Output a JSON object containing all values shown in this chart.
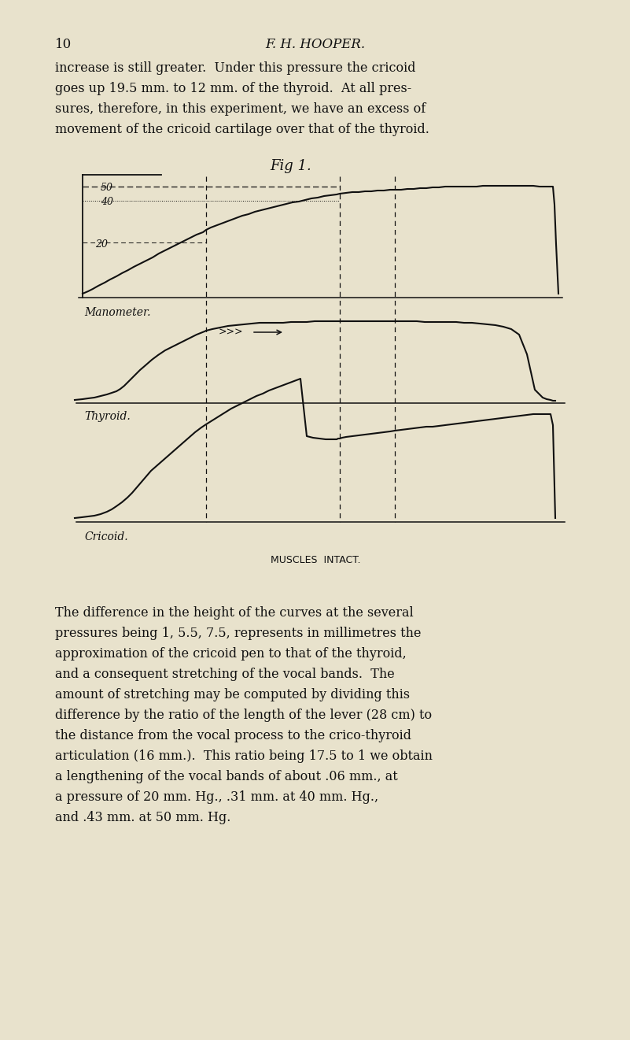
{
  "bg_color": "#e8e2cc",
  "page_number": "10",
  "header_title": "F. H. HOOPER.",
  "top_lines": [
    "increase is still greater.  Under this pressure the cricoid",
    "goes up 19.5 mm. to 12 mm. of the thyroid.  At all pres-",
    "sures, therefore, in this experiment, we have an excess of",
    "movement of the cricoid cartilage over that of the thyroid."
  ],
  "fig_title": "Fig 1.",
  "caption": "MUSCLES  INTACT.",
  "bottom_lines": [
    "The difference in the height of the curves at the several",
    "pressures being 1, 5.5, 7.5, represents in millimetres the",
    "approximation of the cricoid pen to that of the thyroid,",
    "and a consequent stretching of the vocal bands.  The",
    "amount of stretching may be computed by dividing this",
    "difference by the ratio of the length of the lever (28 cm) to",
    "the distance from the vocal process to the crico-thyroid",
    "articulation (16 mm.).  This ratio being 17.5 to 1 we obtain",
    "a lengthening of the vocal bands of about .06 mm., at",
    "a pressure of 20 mm. Hg., .31 mm. at 40 mm. Hg.,",
    "and .43 mm. at 50 mm. Hg."
  ],
  "lc": "#111111",
  "tc": "#111111"
}
